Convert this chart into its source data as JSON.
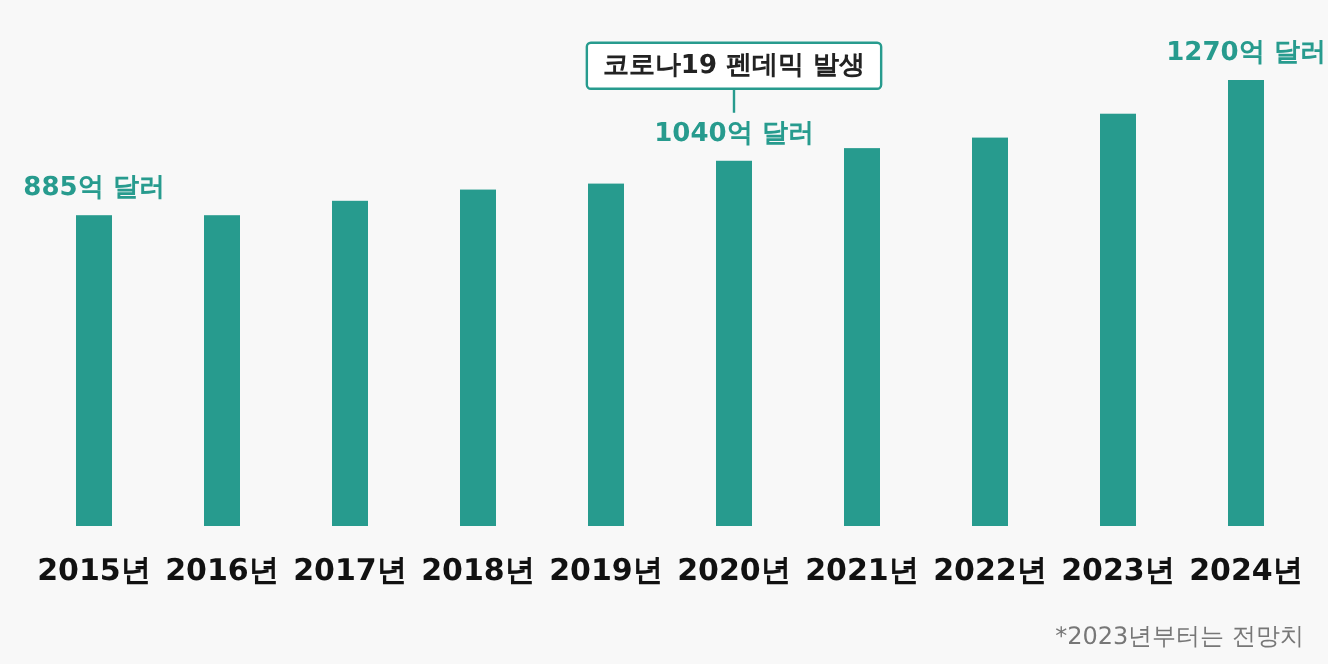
{
  "chart_data": {
    "type": "bar",
    "categories": [
      "2015년",
      "2016년",
      "2017년",
      "2018년",
      "2019년",
      "2020년",
      "2021년",
      "2022년",
      "2023년",
      "2024년"
    ],
    "values": [
      885,
      885,
      926,
      958,
      975,
      1040,
      1076,
      1106,
      1174,
      1270
    ],
    "color": "#279b8e",
    "value_labels": [
      "885억 달러",
      null,
      null,
      null,
      null,
      "1040억 달러",
      null,
      null,
      null,
      "1270억 달러"
    ],
    "tick_labels": "x",
    "annotations": [
      "코로나19 펜데믹 발생",
      "*2023년부터는 전망치"
    ]
  }
}
